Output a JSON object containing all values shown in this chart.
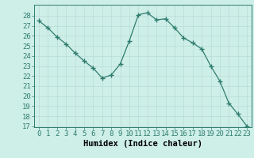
{
  "x": [
    0,
    1,
    2,
    3,
    4,
    5,
    6,
    7,
    8,
    9,
    10,
    11,
    12,
    13,
    14,
    15,
    16,
    17,
    18,
    19,
    20,
    21,
    22,
    23
  ],
  "y": [
    27.5,
    26.8,
    25.9,
    25.2,
    24.3,
    23.5,
    22.8,
    21.8,
    22.1,
    23.2,
    25.5,
    28.1,
    28.3,
    27.6,
    27.7,
    26.8,
    25.8,
    25.3,
    24.7,
    23.0,
    21.5,
    19.3,
    18.2,
    17.0
  ],
  "line_color": "#2e7d6e",
  "marker": "+",
  "bg_color": "#ceeee8",
  "grid_color": "#b8ddd6",
  "xlabel": "Humidex (Indice chaleur)",
  "ylim_min": 17,
  "ylim_max": 29,
  "yticks": [
    17,
    18,
    19,
    20,
    21,
    22,
    23,
    24,
    25,
    26,
    27,
    28
  ],
  "xticks": [
    0,
    1,
    2,
    3,
    4,
    5,
    6,
    7,
    8,
    9,
    10,
    11,
    12,
    13,
    14,
    15,
    16,
    17,
    18,
    19,
    20,
    21,
    22,
    23
  ],
  "xlabel_fontsize": 7.5,
  "tick_fontsize": 6.5
}
